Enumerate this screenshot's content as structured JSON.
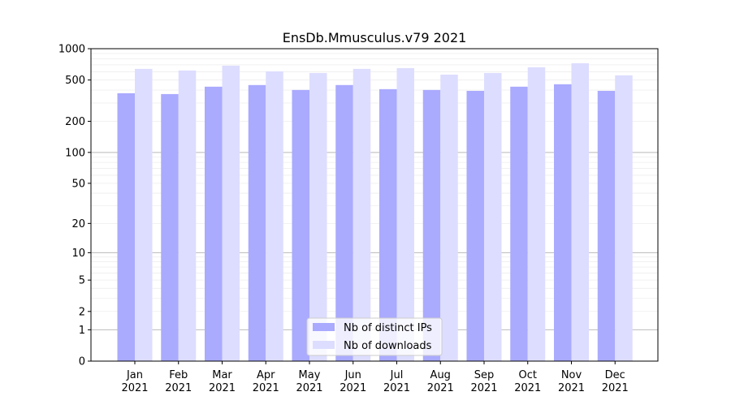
{
  "chart_data": {
    "type": "bar",
    "title": "EnsDb.Mmusculus.v79 2021",
    "xlabel": "",
    "ylabel": "",
    "yscale": "log10(1+y)",
    "ylim": [
      0,
      1000
    ],
    "yticks": [
      0,
      1,
      2,
      5,
      10,
      20,
      50,
      100,
      200,
      500,
      1000
    ],
    "grid": true,
    "legend_position": "bottom-center",
    "categories": [
      "Jan\n2021",
      "Feb\n2021",
      "Mar\n2021",
      "Apr\n2021",
      "May\n2021",
      "Jun\n2021",
      "Jul\n2021",
      "Aug\n2021",
      "Sep\n2021",
      "Oct\n2021",
      "Nov\n2021",
      "Dec\n2021"
    ],
    "series": [
      {
        "name": "Nb of distinct IPs",
        "color": "#aaaaff",
        "values": [
          373,
          366,
          431,
          447,
          401,
          447,
          408,
          401,
          393,
          431,
          455,
          393
        ]
      },
      {
        "name": "Nb of downloads",
        "color": "#ddddff",
        "values": [
          640,
          617,
          687,
          606,
          584,
          640,
          651,
          563,
          584,
          663,
          725,
          554
        ]
      }
    ]
  }
}
